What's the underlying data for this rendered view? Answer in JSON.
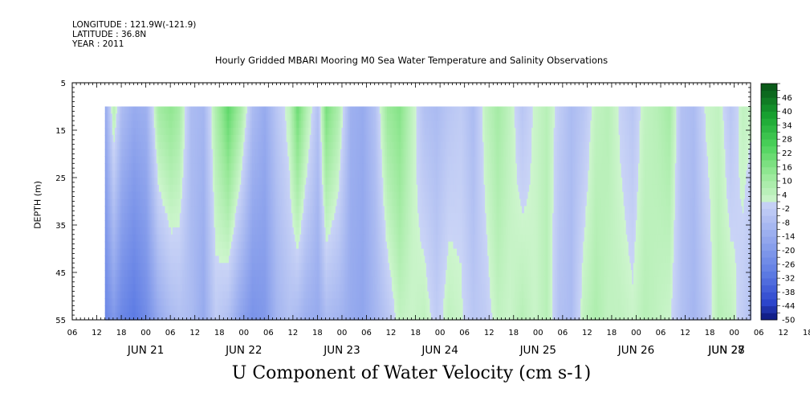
{
  "header": {
    "longitude": "LONGITUDE : 121.9W(-121.9)",
    "latitude": "LATITUDE : 36.8N",
    "year": "YEAR : 2011"
  },
  "footer_title": "U Component of Water Velocity (cm s-1)",
  "chart_data": {
    "type": "heatmap",
    "title": "Hourly Gridded MBARI Mooring M0 Sea Water Temperature and Salinity Observations",
    "xlabel": "",
    "ylabel": "DEPTH (m)",
    "variable": "U Component of Water Velocity (cm s-1)",
    "y_ticks": [
      5,
      15,
      25,
      35,
      45,
      55
    ],
    "y_range": [
      5,
      55
    ],
    "data_depth_range": [
      10,
      55
    ],
    "x_range_hours": [
      0,
      166
    ],
    "x_hour_labels": [
      "06",
      "12",
      "18",
      "00",
      "06",
      "12",
      "18",
      "00",
      "06",
      "12",
      "18",
      "00",
      "06",
      "12",
      "18",
      "00",
      "06",
      "12",
      "18",
      "00",
      "06",
      "12",
      "18",
      "00",
      "06",
      "12",
      "18",
      "00",
      "06",
      "12",
      "18",
      "00",
      "06"
    ],
    "x_day_labels": [
      {
        "label": "JUN 21",
        "hour": 18
      },
      {
        "label": "JUN 22",
        "hour": 42
      },
      {
        "label": "JUN 23",
        "hour": 66
      },
      {
        "label": "JUN 24",
        "hour": 90
      },
      {
        "label": "JUN 25",
        "hour": 114
      },
      {
        "label": "JUN 26",
        "hour": 138
      },
      {
        "label": "JUN 27",
        "hour": 162
      },
      {
        "label": "JUN 28",
        "hour": 180
      }
    ],
    "colorbar_labels": [
      "46",
      "40",
      "34",
      "28",
      "22",
      "16",
      "10",
      "4",
      "-2",
      "-8",
      "-14",
      "-20",
      "-26",
      "-32",
      "-38",
      "-44",
      "-50"
    ],
    "colorbar_range": [
      -50,
      52
    ],
    "colorbar_step": 3,
    "data_start_hour": 8,
    "u_profile_columns": [
      {
        "hour": 8,
        "surface": -14,
        "bottom": -26
      },
      {
        "hour": 10,
        "surface": 6,
        "bottom": -20
      },
      {
        "hour": 12,
        "surface": -8,
        "bottom": -26
      },
      {
        "hour": 15,
        "surface": -14,
        "bottom": -30
      },
      {
        "hour": 18,
        "surface": -12,
        "bottom": -24
      },
      {
        "hour": 21,
        "surface": 10,
        "bottom": -14
      },
      {
        "hour": 24,
        "surface": 14,
        "bottom": -8
      },
      {
        "hour": 26,
        "surface": 10,
        "bottom": -6
      },
      {
        "hour": 29,
        "surface": -8,
        "bottom": -8
      },
      {
        "hour": 32,
        "surface": -10,
        "bottom": -14
      },
      {
        "hour": 35,
        "surface": 8,
        "bottom": -2
      },
      {
        "hour": 38,
        "surface": 22,
        "bottom": -6
      },
      {
        "hour": 41,
        "surface": 10,
        "bottom": -16
      },
      {
        "hour": 44,
        "surface": -8,
        "bottom": -22
      },
      {
        "hour": 47,
        "surface": -14,
        "bottom": -20
      },
      {
        "hour": 50,
        "surface": -4,
        "bottom": -10
      },
      {
        "hour": 53,
        "surface": 4,
        "bottom": -6
      },
      {
        "hour": 55,
        "surface": 20,
        "bottom": -8
      },
      {
        "hour": 57,
        "surface": 8,
        "bottom": -12
      },
      {
        "hour": 60,
        "surface": -6,
        "bottom": -14
      },
      {
        "hour": 62,
        "surface": 18,
        "bottom": -8
      },
      {
        "hour": 65,
        "surface": 8,
        "bottom": -10
      },
      {
        "hour": 68,
        "surface": -12,
        "bottom": -14
      },
      {
        "hour": 71,
        "surface": -14,
        "bottom": -16
      },
      {
        "hour": 74,
        "surface": -6,
        "bottom": -10
      },
      {
        "hour": 77,
        "surface": 12,
        "bottom": -4
      },
      {
        "hour": 80,
        "surface": 16,
        "bottom": 4
      },
      {
        "hour": 83,
        "surface": 4,
        "bottom": 2
      },
      {
        "hour": 86,
        "surface": -6,
        "bottom": 4
      },
      {
        "hour": 89,
        "surface": -8,
        "bottom": -2
      },
      {
        "hour": 92,
        "surface": -4,
        "bottom": 4
      },
      {
        "hour": 95,
        "surface": -2,
        "bottom": 2
      },
      {
        "hour": 98,
        "surface": -8,
        "bottom": -4
      },
      {
        "hour": 101,
        "surface": 4,
        "bottom": -2
      },
      {
        "hour": 104,
        "surface": 10,
        "bottom": 4
      },
      {
        "hour": 107,
        "surface": 4,
        "bottom": 2
      },
      {
        "hour": 110,
        "surface": -4,
        "bottom": 6
      },
      {
        "hour": 113,
        "surface": 2,
        "bottom": 2
      },
      {
        "hour": 116,
        "surface": 6,
        "bottom": 6
      },
      {
        "hour": 119,
        "surface": -2,
        "bottom": -6
      },
      {
        "hour": 122,
        "surface": -8,
        "bottom": -8
      },
      {
        "hour": 125,
        "surface": -4,
        "bottom": 4
      },
      {
        "hour": 128,
        "surface": 4,
        "bottom": 8
      },
      {
        "hour": 131,
        "surface": 6,
        "bottom": 4
      },
      {
        "hour": 134,
        "surface": 0,
        "bottom": 4
      },
      {
        "hour": 137,
        "surface": -4,
        "bottom": 2
      },
      {
        "hour": 140,
        "surface": 4,
        "bottom": 6
      },
      {
        "hour": 143,
        "surface": 6,
        "bottom": 4
      },
      {
        "hour": 146,
        "surface": 10,
        "bottom": 2
      },
      {
        "hour": 149,
        "surface": -6,
        "bottom": -6
      },
      {
        "hour": 152,
        "surface": -8,
        "bottom": -10
      },
      {
        "hour": 155,
        "surface": 2,
        "bottom": -4
      },
      {
        "hour": 158,
        "surface": 4,
        "bottom": 6
      },
      {
        "hour": 161,
        "surface": -4,
        "bottom": 4
      },
      {
        "hour": 164,
        "surface": 4,
        "bottom": -2
      },
      {
        "hour": 166,
        "surface": 2,
        "bottom": -6
      }
    ]
  }
}
